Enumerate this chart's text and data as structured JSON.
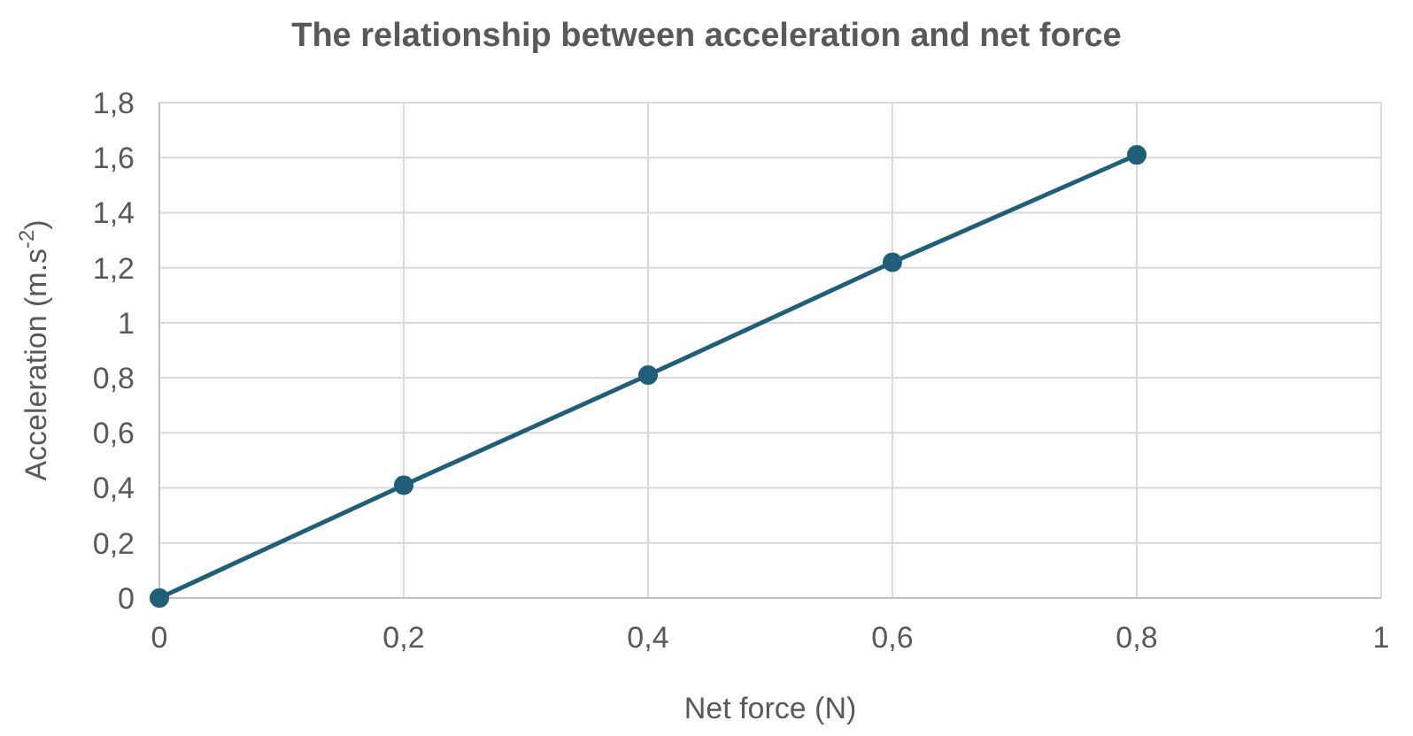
{
  "chart_data": {
    "type": "line",
    "title": "The relationship between acceleration and net force",
    "xlabel": "Net force (N)",
    "ylabel": "Acceleration (m.s$^{-2}$)",
    "x": [
      0,
      0.2,
      0.4,
      0.6,
      0.8
    ],
    "series": [
      {
        "color": "#1f5f7a",
        "values": [
          0,
          0.41,
          0.81,
          1.22,
          1.61
        ]
      }
    ],
    "xlim": [
      0,
      1
    ],
    "ylim": [
      0,
      1.8
    ],
    "xticks": [
      0,
      {
        "value": 0.2,
        "label": "0,2"
      },
      {
        "value": 0.4,
        "label": "0,4"
      },
      {
        "value": 0.6,
        "label": "0,6"
      },
      {
        "value": 0.8,
        "label": "0,8"
      },
      1
    ],
    "yticks": [
      0,
      {
        "value": 0.2,
        "label": "0,2"
      },
      {
        "value": 0.4,
        "label": "0,4"
      },
      {
        "value": 0.6,
        "label": "0,6"
      },
      {
        "value": 0.8,
        "label": "0,8"
      },
      1,
      {
        "value": 1.2,
        "label": "1,2"
      },
      {
        "value": 1.4,
        "label": "1,4"
      },
      {
        "value": 1.6,
        "label": "1,6"
      },
      {
        "value": 1.8,
        "label": "1,8"
      }
    ],
    "grid": true,
    "marker": "circle"
  }
}
